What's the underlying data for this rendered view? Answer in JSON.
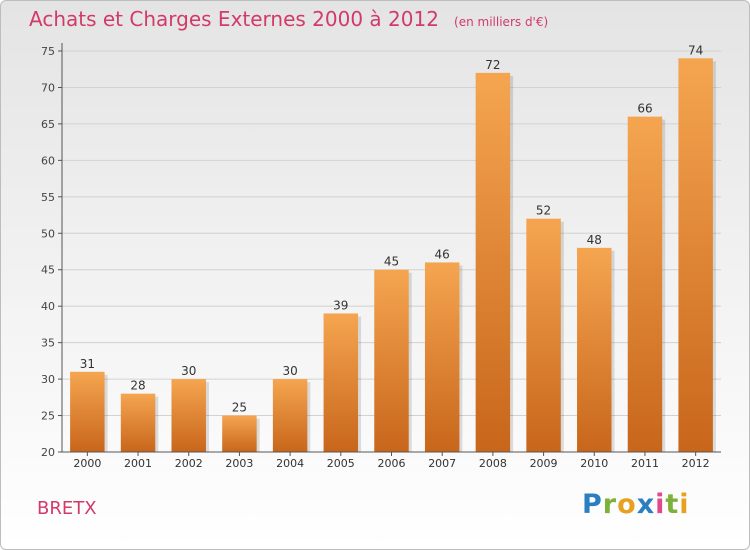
{
  "header": {
    "title": "Achats et Charges Externes 2000 à 2012",
    "unit": "(en milliers d'€)"
  },
  "footer": {
    "commune": "BRETX",
    "logo_letters": [
      {
        "ch": "P",
        "color": "#2a7fc0"
      },
      {
        "ch": "r",
        "color": "#7db23a"
      },
      {
        "ch": "o",
        "color": "#e8a020"
      },
      {
        "ch": "x",
        "color": "#2a7fc0"
      },
      {
        "ch": "i",
        "color": "#e04a8a"
      },
      {
        "ch": "t",
        "color": "#7db23a"
      },
      {
        "ch": "i",
        "color": "#e8a020"
      }
    ]
  },
  "colors": {
    "bar_top": "#f5a550",
    "bar_bottom": "#c8661b",
    "title": "#d23a6a"
  },
  "chart_data": {
    "type": "bar",
    "title": "Achats et Charges Externes 2000 à 2012",
    "subtitle": "(en milliers d'€)",
    "xlabel": "",
    "ylabel": "",
    "categories": [
      "2000",
      "2001",
      "2002",
      "2003",
      "2004",
      "2005",
      "2006",
      "2007",
      "2008",
      "2009",
      "2010",
      "2011",
      "2012"
    ],
    "values": [
      31,
      28,
      30,
      25,
      30,
      39,
      45,
      46,
      72,
      52,
      48,
      66,
      74
    ],
    "ylim": [
      20,
      75
    ],
    "yticks": [
      20,
      25,
      30,
      35,
      40,
      45,
      50,
      55,
      60,
      65,
      70,
      75
    ],
    "grid": true,
    "legend": "none"
  }
}
